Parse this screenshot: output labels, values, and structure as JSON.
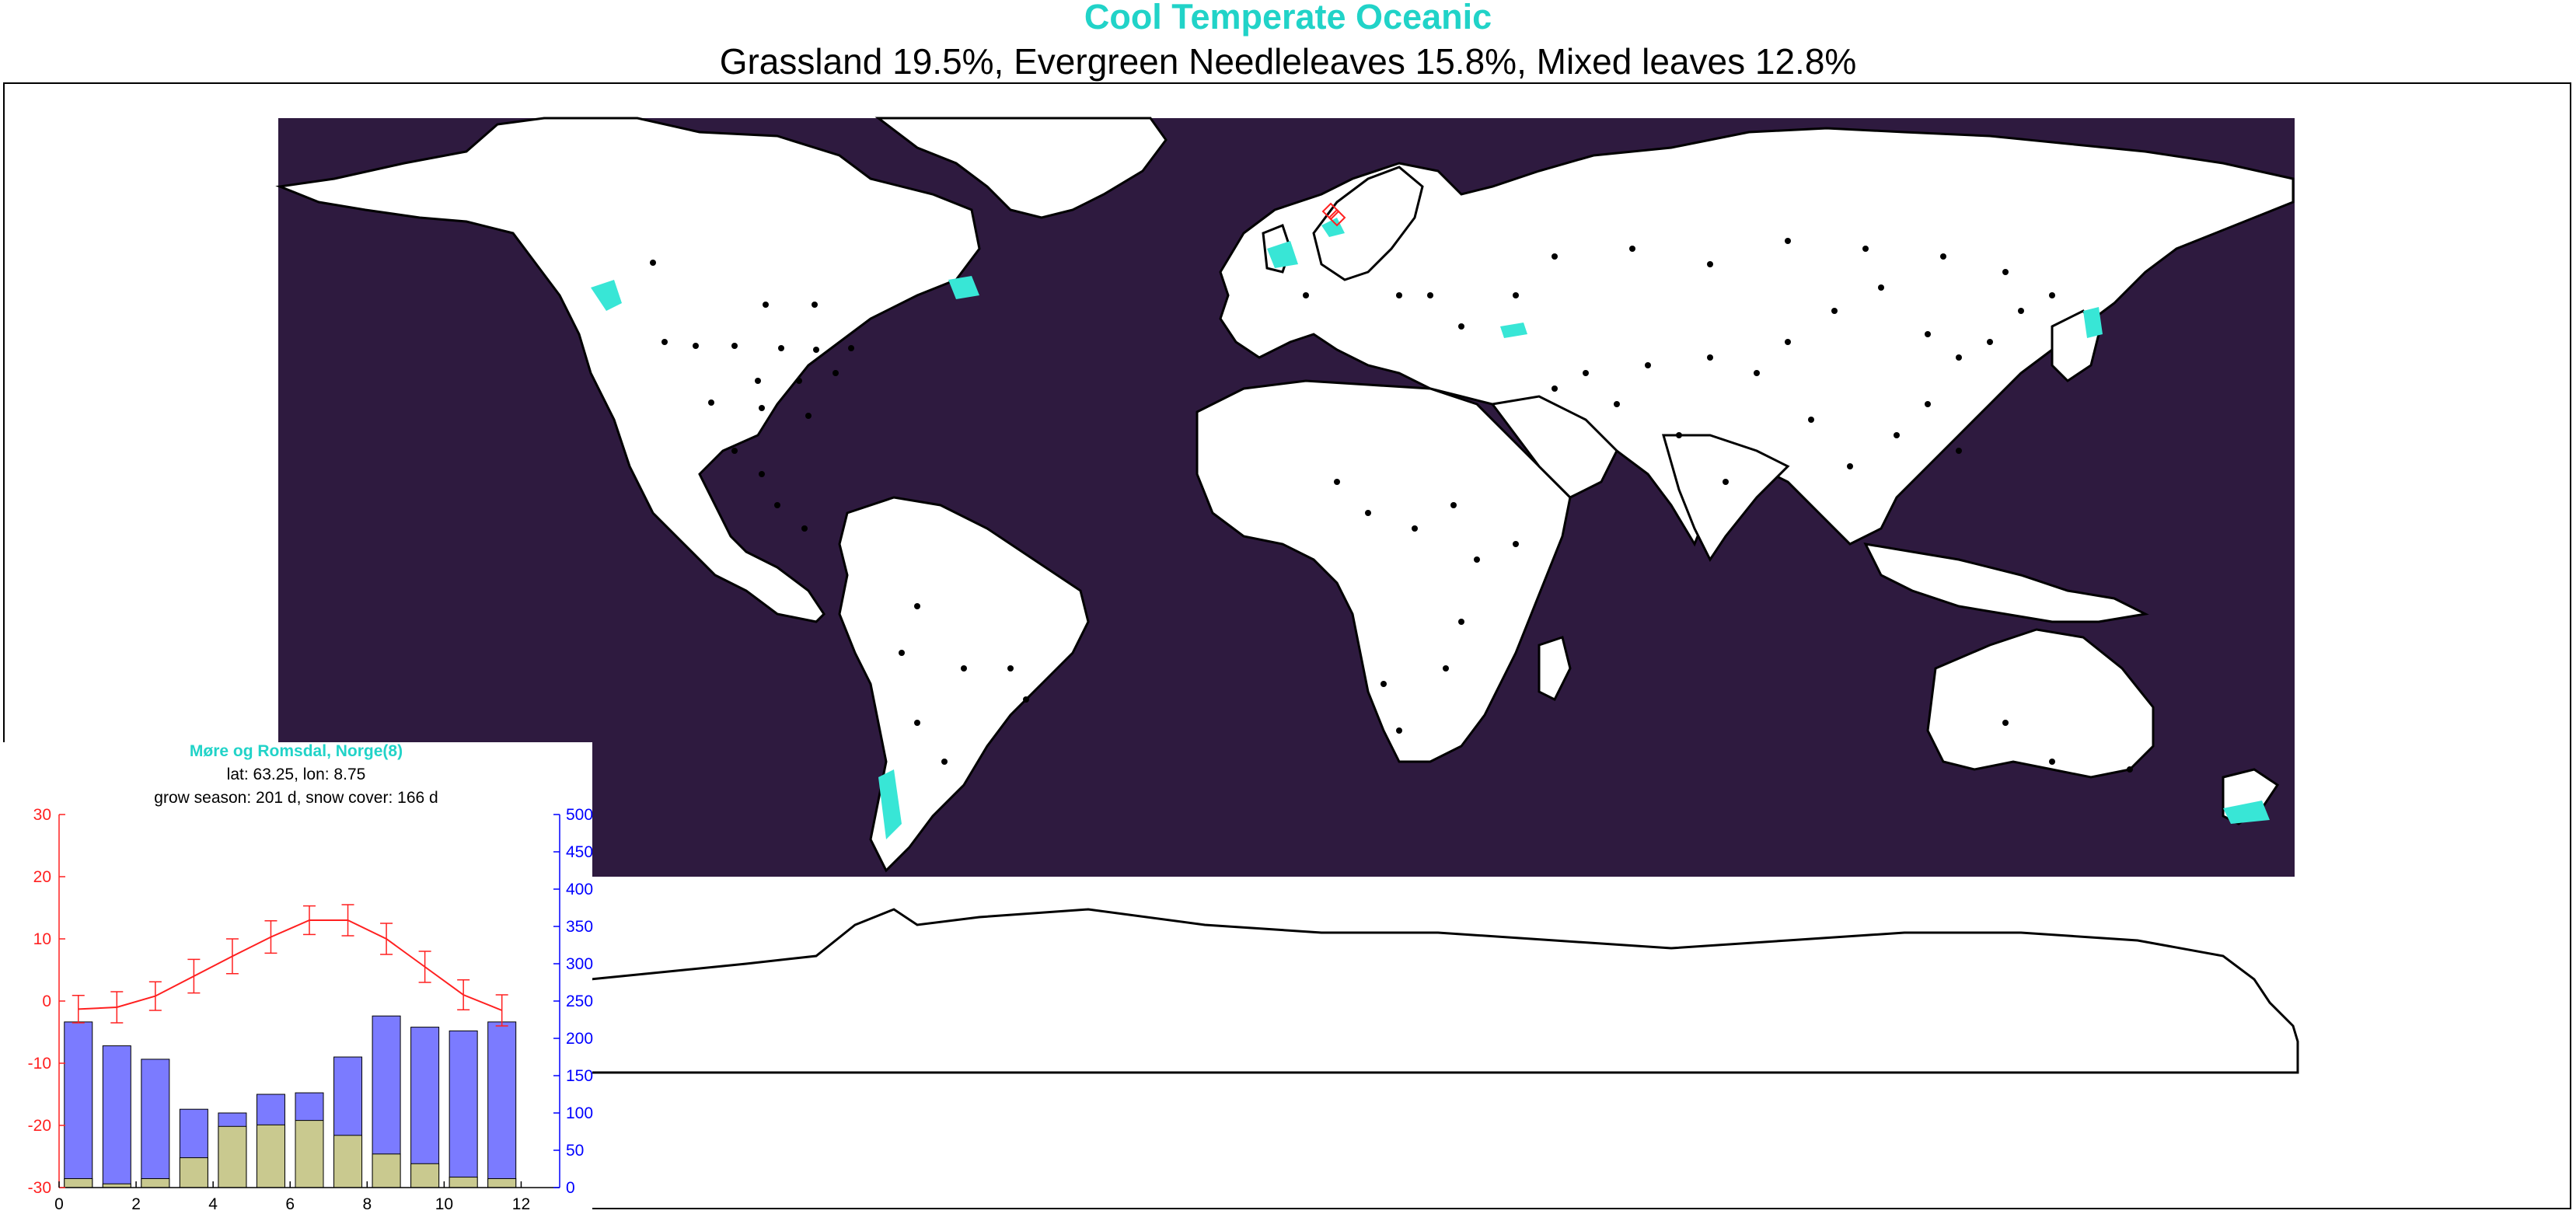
{
  "header": {
    "title": "Cool Temperate Oceanic",
    "subtitle": "Grassland 19.5%, Evergreen Needleleaves 15.8%, Mixed leaves 12.8%"
  },
  "colors": {
    "title": "#21d3c8",
    "ocean": "#2e1a3f",
    "land": "#ffffff",
    "highlight_region": "#38e6d6",
    "temperature": "#ff2020",
    "precipitation_bar": "#7b7bff",
    "snow_bar": "#c9c98f",
    "marker": "#ff2020"
  },
  "map": {
    "projection": "equirectangular",
    "lon_range": [
      -180,
      180
    ],
    "lat_range": [
      -90,
      90
    ],
    "land_color_name": "white",
    "selected_site": {
      "lat": 63.25,
      "lon": 8.75,
      "marker": "red-diamond"
    }
  },
  "chart_data": {
    "type": "bar",
    "title": "Møre og Romsdal, Norge(8)",
    "subtitle_lines": [
      "lat: 63.25, lon: 8.75",
      "grow season: 201 d, snow cover: 166 d"
    ],
    "x": [
      0.5,
      1.5,
      2.5,
      3.5,
      4.5,
      5.5,
      6.5,
      7.5,
      8.5,
      9.5,
      10.5,
      11.5
    ],
    "xlim": [
      0,
      13
    ],
    "xticks": [
      0,
      2,
      4,
      6,
      8,
      10,
      12
    ],
    "y_left": {
      "lim": [
        -30,
        30
      ],
      "ticks": [
        -30,
        -20,
        -10,
        0,
        10,
        20,
        30
      ],
      "color": "red"
    },
    "y_right": {
      "lim": [
        0,
        500
      ],
      "ticks": [
        0,
        50,
        100,
        150,
        200,
        250,
        300,
        350,
        400,
        450,
        500
      ],
      "color": "blue"
    },
    "series": [
      {
        "kind": "bar",
        "axis": "right",
        "values": [
          222,
          190,
          172,
          105,
          100,
          125,
          127,
          175,
          230,
          215,
          210,
          222
        ]
      },
      {
        "kind": "bar",
        "axis": "right",
        "values": [
          12,
          5,
          12,
          40,
          82,
          84,
          90,
          70,
          45,
          32,
          14,
          12
        ]
      },
      {
        "kind": "line",
        "axis": "left",
        "values": [
          -1.3,
          -1.0,
          0.8,
          4.0,
          7.2,
          10.3,
          13.0,
          13.0,
          10.0,
          5.5,
          1.0,
          -1.5
        ],
        "error": [
          2.2,
          2.5,
          2.3,
          2.7,
          2.8,
          2.6,
          2.3,
          2.5,
          2.5,
          2.5,
          2.4,
          2.5
        ]
      }
    ]
  }
}
